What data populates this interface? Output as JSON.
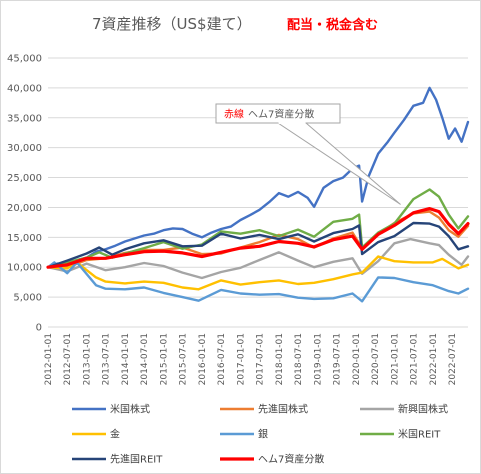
{
  "chart_data": {
    "type": "line",
    "title": "7資産推移（US$建て）",
    "subtitle": "配当・税金含む",
    "ylim": [
      0,
      45000
    ],
    "yticks": [
      "0",
      "5,000",
      "10,000",
      "15,000",
      "20,000",
      "25,000",
      "30,000",
      "35,000",
      "40,000",
      "45,000"
    ],
    "xlim": [
      "2012-01-01",
      "2022-12-01"
    ],
    "xticks": [
      "2012-01-01",
      "2012-07-01",
      "2013-01-01",
      "2013-07-01",
      "2014-01-01",
      "2014-07-01",
      "2015-01-01",
      "2015-07-01",
      "2016-01-01",
      "2016-07-01",
      "2017-01-01",
      "2017-07-01",
      "2018-01-01",
      "2018-07-01",
      "2019-01-01",
      "2019-07-01",
      "2020-01-01",
      "2020-07-01",
      "2021-01-01",
      "2021-07-01",
      "2022-01-01",
      "2022-07-01"
    ],
    "grid": true,
    "legend_position": "bottom",
    "annotation": {
      "label_red": "赤線",
      "label_rest": "ヘム7資産分散",
      "target_date": "2021-03-01",
      "target_value": 20500
    },
    "series": [
      {
        "name": "米国株式",
        "color": "#4472c4",
        "width": 2.4,
        "x": [
          "2012-01-01",
          "2012-04-01",
          "2012-07-01",
          "2012-10-01",
          "2013-01-01",
          "2013-04-01",
          "2013-07-01",
          "2013-10-01",
          "2014-01-01",
          "2014-04-01",
          "2014-07-01",
          "2014-10-01",
          "2015-01-01",
          "2015-04-01",
          "2015-07-01",
          "2015-10-01",
          "2016-01-01",
          "2016-04-01",
          "2016-07-01",
          "2016-10-01",
          "2017-01-01",
          "2017-04-01",
          "2017-07-01",
          "2017-10-01",
          "2018-01-01",
          "2018-04-01",
          "2018-07-01",
          "2018-10-01",
          "2018-12-01",
          "2019-03-01",
          "2019-06-01",
          "2019-09-01",
          "2019-12-01",
          "2020-02-01",
          "2020-03-01",
          "2020-05-01",
          "2020-08-01",
          "2020-11-01",
          "2021-01-01",
          "2021-04-01",
          "2021-07-01",
          "2021-10-01",
          "2021-12-01",
          "2022-02-01",
          "2022-04-01",
          "2022-06-01",
          "2022-08-01",
          "2022-10-01",
          "2022-12-01"
        ],
        "y": [
          10000,
          10600,
          10500,
          11200,
          11600,
          12600,
          13000,
          13600,
          14300,
          14800,
          15300,
          15600,
          16200,
          16500,
          16400,
          15600,
          15000,
          15800,
          16400,
          16800,
          17900,
          18700,
          19600,
          20900,
          22400,
          21800,
          22600,
          21600,
          20100,
          23300,
          24400,
          25000,
          26500,
          27000,
          21000,
          25200,
          29000,
          31000,
          32500,
          34600,
          37000,
          37500,
          40000,
          38000,
          35000,
          31500,
          33200,
          31000,
          34300
        ]
      },
      {
        "name": "先進国株式",
        "color": "#ed7d31",
        "width": 2.4,
        "x": [
          "2012-01-01",
          "2012-07-01",
          "2013-01-01",
          "2013-07-01",
          "2014-01-01",
          "2014-07-01",
          "2015-01-01",
          "2015-07-01",
          "2016-01-01",
          "2016-07-01",
          "2017-01-01",
          "2017-07-01",
          "2018-01-01",
          "2018-07-01",
          "2018-12-01",
          "2019-06-01",
          "2019-12-01",
          "2020-03-01",
          "2020-08-01",
          "2021-01-01",
          "2021-07-01",
          "2021-12-01",
          "2022-03-01",
          "2022-06-01",
          "2022-09-01",
          "2022-12-01"
        ],
        "y": [
          10000,
          10000,
          11200,
          11500,
          12400,
          12900,
          12900,
          13300,
          12200,
          12300,
          13300,
          14200,
          15400,
          14700,
          13300,
          14800,
          15800,
          13200,
          15500,
          17400,
          19000,
          19300,
          18300,
          16200,
          15100,
          16900
        ]
      },
      {
        "name": "新興国株式",
        "color": "#a5a5a5",
        "width": 2.4,
        "x": [
          "2012-01-01",
          "2012-07-01",
          "2013-01-01",
          "2013-07-01",
          "2014-01-01",
          "2014-07-01",
          "2015-01-01",
          "2015-07-01",
          "2016-01-01",
          "2016-07-01",
          "2017-01-01",
          "2017-07-01",
          "2018-01-01",
          "2018-07-01",
          "2018-12-01",
          "2019-06-01",
          "2019-12-01",
          "2020-03-01",
          "2020-08-01",
          "2021-01-01",
          "2021-06-01",
          "2021-12-01",
          "2022-03-01",
          "2022-06-01",
          "2022-10-01",
          "2022-12-01"
        ],
        "y": [
          10000,
          9300,
          10600,
          9500,
          10000,
          10700,
          10200,
          9100,
          8200,
          9200,
          9900,
          11200,
          12500,
          11100,
          10000,
          10900,
          11500,
          8900,
          11000,
          14000,
          14700,
          14000,
          13700,
          12100,
          10400,
          11800
        ]
      },
      {
        "name": "金",
        "color": "#ffc000",
        "width": 2.4,
        "x": [
          "2012-01-01",
          "2012-07-01",
          "2012-10-01",
          "2013-04-01",
          "2013-07-01",
          "2014-01-01",
          "2014-07-01",
          "2015-01-01",
          "2015-07-01",
          "2015-12-01",
          "2016-07-01",
          "2017-01-01",
          "2017-07-01",
          "2018-01-01",
          "2018-07-01",
          "2018-12-01",
          "2019-06-01",
          "2019-12-01",
          "2020-03-01",
          "2020-08-01",
          "2021-01-01",
          "2021-07-01",
          "2022-01-01",
          "2022-04-01",
          "2022-09-01",
          "2022-12-01"
        ],
        "y": [
          10000,
          9800,
          10800,
          8300,
          7600,
          7300,
          7600,
          7400,
          6600,
          6300,
          7800,
          7100,
          7500,
          7800,
          7200,
          7400,
          8000,
          8800,
          9100,
          11800,
          11000,
          10800,
          10800,
          11400,
          9800,
          10400
        ]
      },
      {
        "name": "銀",
        "color": "#5b9bd5",
        "width": 2.4,
        "x": [
          "2012-01-01",
          "2012-03-01",
          "2012-07-01",
          "2012-10-01",
          "2013-04-01",
          "2013-07-01",
          "2014-01-01",
          "2014-07-01",
          "2015-01-01",
          "2015-07-01",
          "2015-12-01",
          "2016-07-01",
          "2017-01-01",
          "2017-07-01",
          "2018-01-01",
          "2018-07-01",
          "2018-12-01",
          "2019-06-01",
          "2019-12-01",
          "2020-03-01",
          "2020-08-01",
          "2021-01-01",
          "2021-07-01",
          "2022-01-01",
          "2022-06-01",
          "2022-09-01",
          "2022-12-01"
        ],
        "y": [
          10000,
          10800,
          9000,
          10800,
          7000,
          6400,
          6300,
          6600,
          5700,
          5000,
          4400,
          6200,
          5600,
          5400,
          5500,
          4900,
          4700,
          4800,
          5600,
          4300,
          8300,
          8200,
          7500,
          7000,
          6000,
          5600,
          6400
        ]
      },
      {
        "name": "米国REIT",
        "color": "#70ad47",
        "width": 2.4,
        "x": [
          "2012-01-01",
          "2012-07-01",
          "2013-01-01",
          "2013-05-01",
          "2013-09-01",
          "2014-01-01",
          "2014-07-01",
          "2015-01-01",
          "2015-07-01",
          "2016-01-01",
          "2016-07-01",
          "2017-01-01",
          "2017-07-01",
          "2018-01-01",
          "2018-07-01",
          "2018-12-01",
          "2019-06-01",
          "2019-12-01",
          "2020-02-01",
          "2020-03-01",
          "2020-08-01",
          "2021-01-01",
          "2021-07-01",
          "2021-12-01",
          "2022-03-01",
          "2022-06-01",
          "2022-09-01",
          "2022-12-01"
        ],
        "y": [
          10000,
          10800,
          11600,
          12500,
          11600,
          12300,
          13200,
          14200,
          13100,
          13800,
          16000,
          15600,
          16200,
          15200,
          16300,
          15100,
          17600,
          18100,
          18800,
          13300,
          15800,
          17300,
          21400,
          23000,
          21800,
          18800,
          16500,
          18500
        ]
      },
      {
        "name": "先進国REIT",
        "color": "#264478",
        "width": 2.4,
        "x": [
          "2012-01-01",
          "2012-07-01",
          "2013-01-01",
          "2013-05-01",
          "2013-09-01",
          "2014-01-01",
          "2014-07-01",
          "2015-01-01",
          "2015-07-01",
          "2016-01-01",
          "2016-07-01",
          "2017-01-01",
          "2017-07-01",
          "2018-01-01",
          "2018-07-01",
          "2018-12-01",
          "2019-06-01",
          "2019-12-01",
          "2020-02-01",
          "2020-03-01",
          "2020-08-01",
          "2021-01-01",
          "2021-07-01",
          "2021-12-01",
          "2022-03-01",
          "2022-06-01",
          "2022-09-01",
          "2022-12-01"
        ],
        "y": [
          10000,
          11100,
          12300,
          13300,
          12100,
          13000,
          14000,
          14500,
          13500,
          13600,
          15600,
          14800,
          15400,
          14700,
          15500,
          14300,
          15700,
          16400,
          17000,
          12200,
          14200,
          15200,
          17400,
          17300,
          16800,
          15200,
          13000,
          13500
        ]
      },
      {
        "name": "ヘム7資産分散",
        "color": "#ff0000",
        "width": 3.2,
        "x": [
          "2012-01-01",
          "2012-07-01",
          "2013-01-01",
          "2013-07-01",
          "2014-01-01",
          "2014-07-01",
          "2015-01-01",
          "2015-07-01",
          "2016-01-01",
          "2016-07-01",
          "2017-01-01",
          "2017-07-01",
          "2018-01-01",
          "2018-07-01",
          "2018-12-01",
          "2019-06-01",
          "2019-12-01",
          "2020-03-01",
          "2020-08-01",
          "2021-01-01",
          "2021-07-01",
          "2021-12-01",
          "2022-03-01",
          "2022-06-01",
          "2022-09-01",
          "2022-12-01"
        ],
        "y": [
          10000,
          10400,
          11500,
          11500,
          12100,
          12600,
          12700,
          12400,
          11800,
          12500,
          13200,
          13500,
          14300,
          14000,
          13400,
          14600,
          15200,
          13000,
          15500,
          17000,
          19100,
          19800,
          19300,
          17200,
          15600,
          17300
        ]
      }
    ]
  }
}
